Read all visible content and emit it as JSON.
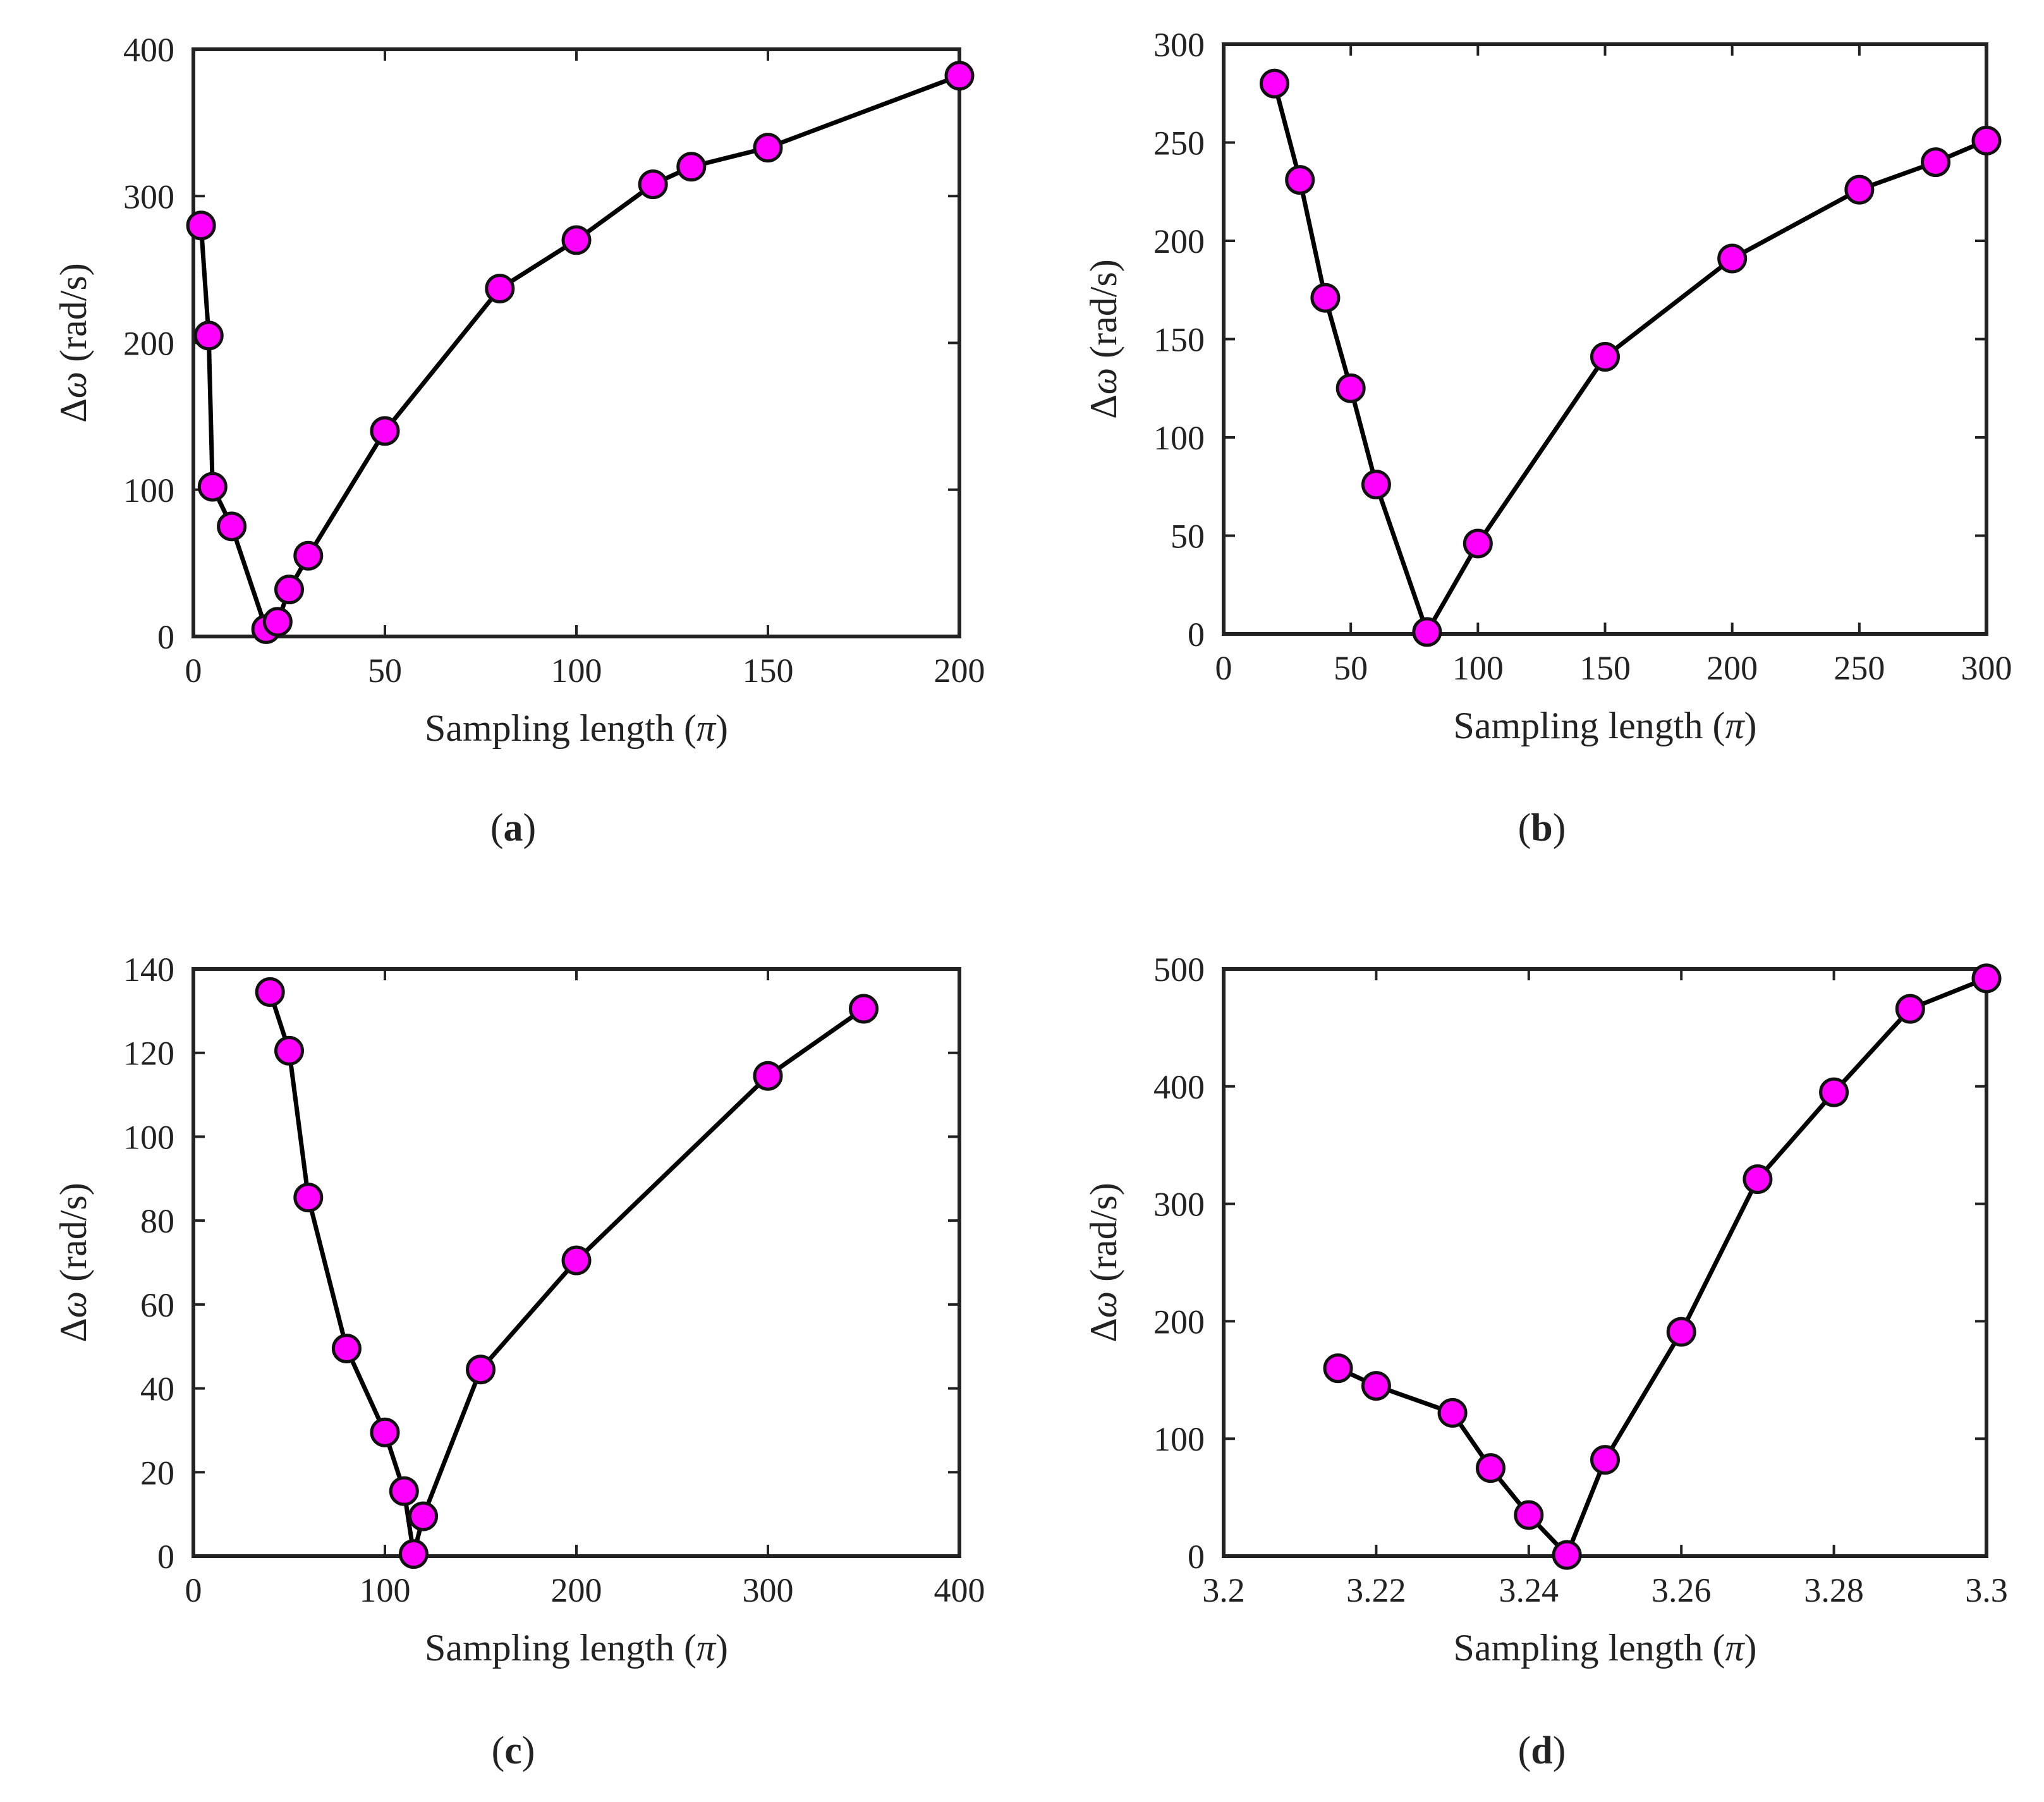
{
  "figure": {
    "panels": [
      "a",
      "b",
      "c",
      "d"
    ]
  },
  "chart_data": [
    {
      "panel_label": "a",
      "type": "line",
      "xlabel_prefix": "Sampling length (",
      "xlabel_symbol": "π",
      "xlabel_suffix": ")",
      "ylabel_prefix": "Δ",
      "ylabel_symbol": "ω",
      "ylabel_suffix": " (rad/s)",
      "xlim": [
        0,
        200
      ],
      "ylim": [
        0,
        400
      ],
      "xticks": [
        0,
        50,
        100,
        150,
        200
      ],
      "xtick_labels": [
        "0",
        "50",
        "100",
        "150",
        "200"
      ],
      "yticks": [
        0,
        100,
        200,
        300,
        400
      ],
      "ytick_labels": [
        "0",
        "100",
        "200",
        "300",
        "400"
      ],
      "series": [
        {
          "name": "Δω",
          "color": "#ff00ff",
          "line_color": "#000000",
          "marker": "circle",
          "x": [
            2,
            4,
            5,
            10,
            19,
            22,
            25,
            30,
            50,
            80,
            100,
            120,
            130,
            150,
            200
          ],
          "y": [
            280,
            205,
            102,
            75,
            5,
            10,
            32,
            55,
            140,
            237,
            270,
            308,
            320,
            333,
            382
          ]
        }
      ]
    },
    {
      "panel_label": "b",
      "type": "line",
      "xlabel_prefix": "Sampling length (",
      "xlabel_symbol": "π",
      "xlabel_suffix": ")",
      "ylabel_prefix": "Δ",
      "ylabel_symbol": "ω",
      "ylabel_suffix": " (rad/s)",
      "xlim": [
        0,
        300
      ],
      "ylim": [
        0,
        300
      ],
      "xticks": [
        0,
        50,
        100,
        150,
        200,
        250,
        300
      ],
      "xtick_labels": [
        "0",
        "50",
        "100",
        "150",
        "200",
        "250",
        "300"
      ],
      "yticks": [
        0,
        50,
        100,
        150,
        200,
        250,
        300
      ],
      "ytick_labels": [
        "0",
        "50",
        "100",
        "150",
        "200",
        "250",
        "300"
      ],
      "series": [
        {
          "name": "Δω",
          "color": "#ff00ff",
          "line_color": "#000000",
          "marker": "circle",
          "x": [
            20,
            30,
            40,
            50,
            60,
            80,
            100,
            150,
            200,
            250,
            280,
            300
          ],
          "y": [
            280,
            231,
            171,
            125,
            76,
            1,
            46,
            141,
            191,
            226,
            240,
            251
          ]
        }
      ]
    },
    {
      "panel_label": "c",
      "type": "line",
      "xlabel_prefix": "Sampling length (",
      "xlabel_symbol": "π",
      "xlabel_suffix": ")",
      "ylabel_prefix": "Δ",
      "ylabel_symbol": "ω",
      "ylabel_suffix": " (rad/s)",
      "xlim": [
        0,
        400
      ],
      "ylim": [
        0,
        140
      ],
      "xticks": [
        0,
        100,
        200,
        300,
        400
      ],
      "xtick_labels": [
        "0",
        "100",
        "200",
        "300",
        "400"
      ],
      "yticks": [
        0,
        20,
        40,
        60,
        80,
        100,
        120,
        140
      ],
      "ytick_labels": [
        "0",
        "20",
        "40",
        "60",
        "80",
        "100",
        "120",
        "140"
      ],
      "series": [
        {
          "name": "Δω",
          "color": "#ff00ff",
          "line_color": "#000000",
          "marker": "circle",
          "x": [
            40,
            50,
            60,
            80,
            100,
            110,
            115,
            120,
            150,
            200,
            300,
            350
          ],
          "y": [
            134.5,
            120.5,
            85.5,
            49.5,
            29.5,
            15.5,
            0.5,
            9.5,
            44.5,
            70.5,
            114.5,
            130.5
          ]
        }
      ]
    },
    {
      "panel_label": "d",
      "type": "line",
      "xlabel_prefix": "Sampling length (",
      "xlabel_symbol": "π",
      "xlabel_suffix": ")",
      "ylabel_prefix": "Δ",
      "ylabel_symbol": "ω",
      "ylabel_suffix": " (rad/s)",
      "xlim": [
        3.2,
        3.3
      ],
      "ylim": [
        0,
        500
      ],
      "xticks": [
        3.2,
        3.22,
        3.24,
        3.26,
        3.28,
        3.3
      ],
      "xtick_labels": [
        "3.2",
        "3.22",
        "3.24",
        "3.26",
        "3.28",
        "3.3"
      ],
      "yticks": [
        0,
        100,
        200,
        300,
        400,
        500
      ],
      "ytick_labels": [
        "0",
        "100",
        "200",
        "300",
        "400",
        "500"
      ],
      "series": [
        {
          "name": "Δω",
          "color": "#ff00ff",
          "line_color": "#000000",
          "marker": "circle",
          "x": [
            3.215,
            3.22,
            3.23,
            3.235,
            3.24,
            3.245,
            3.25,
            3.26,
            3.27,
            3.28,
            3.29,
            3.3
          ],
          "y": [
            160,
            145,
            122,
            75,
            35,
            1,
            82,
            191,
            321,
            395,
            466,
            492
          ]
        }
      ]
    }
  ]
}
